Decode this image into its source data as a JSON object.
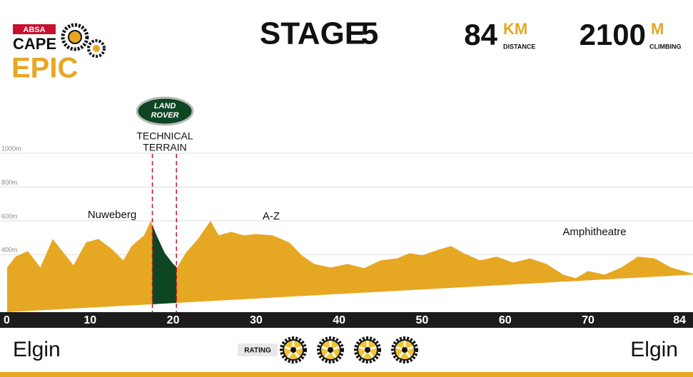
{
  "brand": {
    "sponsor": "ABSA",
    "line1": "CAPE",
    "line2": "EPIC"
  },
  "header": {
    "title": "STAGE",
    "stage": "5",
    "distance": {
      "value": "84",
      "unit": "KM",
      "label": "DISTANCE"
    },
    "climbing": {
      "value": "2100",
      "unit": "M",
      "label": "CLIMBING"
    }
  },
  "chart_data": {
    "type": "area",
    "x": [
      0,
      1,
      2.5,
      4,
      5.5,
      6.5,
      8,
      9.5,
      11,
      12.5,
      14,
      15,
      16.5,
      17.3,
      18,
      19,
      20,
      20.5,
      21.5,
      23,
      24.5,
      25.5,
      27,
      28.5,
      30,
      32,
      34,
      35.5,
      37,
      39,
      41,
      43,
      45,
      47,
      48.5,
      50,
      52,
      53.5,
      55,
      57,
      59,
      61,
      63,
      65,
      67,
      68.5,
      70,
      72,
      74,
      76,
      78,
      80,
      81.5,
      83
    ],
    "values": [
      324,
      388,
      421,
      324,
      493,
      430,
      337,
      472,
      493,
      438,
      366,
      451,
      514,
      600,
      514,
      409,
      345,
      324,
      409,
      493,
      600,
      514,
      535,
      514,
      522,
      514,
      472,
      396,
      345,
      324,
      345,
      320,
      366,
      378,
      409,
      396,
      430,
      451,
      409,
      366,
      388,
      353,
      378,
      345,
      282,
      261,
      303,
      282,
      324,
      388,
      378,
      324,
      303,
      282
    ],
    "color": "#e6a723",
    "xlim": [
      0,
      83.5
    ],
    "ylim": [
      60,
      1040
    ],
    "xticks": [
      0,
      10,
      20,
      30,
      40,
      50,
      60,
      70,
      84
    ],
    "yticks": [
      {
        "value": 400,
        "label": "400m"
      },
      {
        "value": 600,
        "label": "600m"
      },
      {
        "value": 800,
        "label": "800m"
      },
      {
        "value": 1000,
        "label": "1000m"
      }
    ],
    "grid": true,
    "annotations": [
      "Nuweberg",
      "A-Z",
      "Amphitheatre"
    ],
    "technical_terrain": {
      "sponsor": [
        "LAND",
        "ROVER"
      ],
      "label": [
        "TECHNICAL",
        "TERRAIN"
      ],
      "from": 17.5,
      "to": 20.4,
      "color": "#0e4624"
    }
  },
  "footer": {
    "start": "Elgin",
    "finish": "Elgin",
    "rating_label": "RATING",
    "rating": 4
  }
}
